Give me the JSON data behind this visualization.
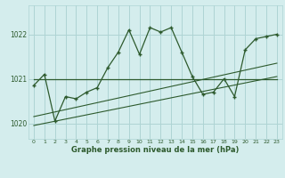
{
  "x": [
    0,
    1,
    2,
    3,
    4,
    5,
    6,
    7,
    8,
    9,
    10,
    11,
    12,
    13,
    14,
    15,
    16,
    17,
    18,
    19,
    20,
    21,
    22,
    23
  ],
  "y": [
    1020.85,
    1021.1,
    1020.05,
    1020.6,
    1020.55,
    1020.7,
    1020.8,
    1021.25,
    1021.6,
    1022.1,
    1021.55,
    1022.15,
    1022.05,
    1022.15,
    1021.6,
    1021.05,
    1020.65,
    1020.7,
    1021.0,
    1020.6,
    1021.65,
    1021.9,
    1021.95,
    1022.0
  ],
  "trend1_x": [
    0,
    23
  ],
  "trend1_y": [
    1021.0,
    1021.0
  ],
  "trend2_x": [
    0,
    23
  ],
  "trend2_y": [
    1020.15,
    1021.35
  ],
  "trend3_x": [
    0,
    23
  ],
  "trend3_y": [
    1019.95,
    1021.05
  ],
  "bg_color": "#d4eded",
  "grid_color": "#aed4d4",
  "line_color": "#2d5a2d",
  "xlabel": "Graphe pression niveau de la mer (hPa)",
  "ylim_min": 1019.65,
  "ylim_max": 1022.65,
  "yticks": [
    1020,
    1021,
    1022
  ],
  "xticks": [
    0,
    1,
    2,
    3,
    4,
    5,
    6,
    7,
    8,
    9,
    10,
    11,
    12,
    13,
    14,
    15,
    16,
    17,
    18,
    19,
    20,
    21,
    22,
    23
  ]
}
